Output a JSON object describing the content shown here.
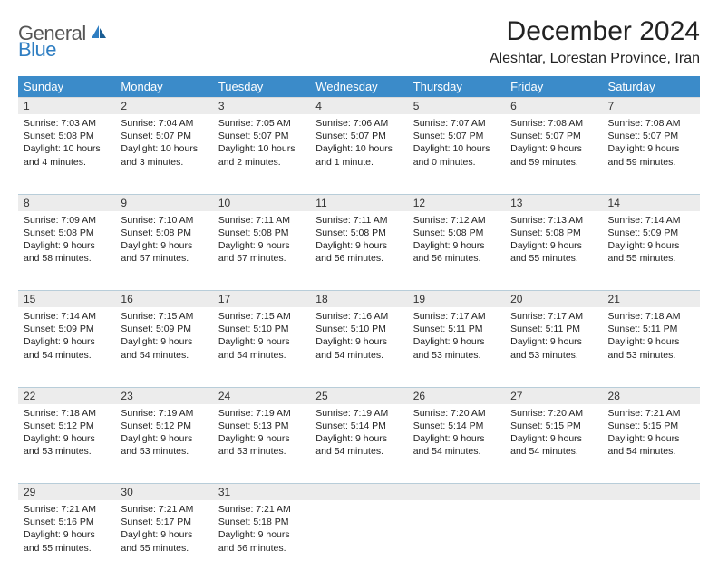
{
  "logo": {
    "word1": "General",
    "word2": "Blue"
  },
  "title": "December 2024",
  "subtitle": "Aleshtar, Lorestan Province, Iran",
  "colors": {
    "header_bg": "#3b8bc9",
    "header_text": "#ffffff",
    "daynum_bg": "#ececec",
    "row_divider": "#b8cdd9",
    "logo_accent": "#2f7ec2",
    "text": "#222222"
  },
  "day_headers": [
    "Sunday",
    "Monday",
    "Tuesday",
    "Wednesday",
    "Thursday",
    "Friday",
    "Saturday"
  ],
  "weeks": [
    [
      {
        "n": "1",
        "sunrise": "7:03 AM",
        "sunset": "5:08 PM",
        "dl": "10 hours and 4 minutes."
      },
      {
        "n": "2",
        "sunrise": "7:04 AM",
        "sunset": "5:07 PM",
        "dl": "10 hours and 3 minutes."
      },
      {
        "n": "3",
        "sunrise": "7:05 AM",
        "sunset": "5:07 PM",
        "dl": "10 hours and 2 minutes."
      },
      {
        "n": "4",
        "sunrise": "7:06 AM",
        "sunset": "5:07 PM",
        "dl": "10 hours and 1 minute."
      },
      {
        "n": "5",
        "sunrise": "7:07 AM",
        "sunset": "5:07 PM",
        "dl": "10 hours and 0 minutes."
      },
      {
        "n": "6",
        "sunrise": "7:08 AM",
        "sunset": "5:07 PM",
        "dl": "9 hours and 59 minutes."
      },
      {
        "n": "7",
        "sunrise": "7:08 AM",
        "sunset": "5:07 PM",
        "dl": "9 hours and 59 minutes."
      }
    ],
    [
      {
        "n": "8",
        "sunrise": "7:09 AM",
        "sunset": "5:08 PM",
        "dl": "9 hours and 58 minutes."
      },
      {
        "n": "9",
        "sunrise": "7:10 AM",
        "sunset": "5:08 PM",
        "dl": "9 hours and 57 minutes."
      },
      {
        "n": "10",
        "sunrise": "7:11 AM",
        "sunset": "5:08 PM",
        "dl": "9 hours and 57 minutes."
      },
      {
        "n": "11",
        "sunrise": "7:11 AM",
        "sunset": "5:08 PM",
        "dl": "9 hours and 56 minutes."
      },
      {
        "n": "12",
        "sunrise": "7:12 AM",
        "sunset": "5:08 PM",
        "dl": "9 hours and 56 minutes."
      },
      {
        "n": "13",
        "sunrise": "7:13 AM",
        "sunset": "5:08 PM",
        "dl": "9 hours and 55 minutes."
      },
      {
        "n": "14",
        "sunrise": "7:14 AM",
        "sunset": "5:09 PM",
        "dl": "9 hours and 55 minutes."
      }
    ],
    [
      {
        "n": "15",
        "sunrise": "7:14 AM",
        "sunset": "5:09 PM",
        "dl": "9 hours and 54 minutes."
      },
      {
        "n": "16",
        "sunrise": "7:15 AM",
        "sunset": "5:09 PM",
        "dl": "9 hours and 54 minutes."
      },
      {
        "n": "17",
        "sunrise": "7:15 AM",
        "sunset": "5:10 PM",
        "dl": "9 hours and 54 minutes."
      },
      {
        "n": "18",
        "sunrise": "7:16 AM",
        "sunset": "5:10 PM",
        "dl": "9 hours and 54 minutes."
      },
      {
        "n": "19",
        "sunrise": "7:17 AM",
        "sunset": "5:11 PM",
        "dl": "9 hours and 53 minutes."
      },
      {
        "n": "20",
        "sunrise": "7:17 AM",
        "sunset": "5:11 PM",
        "dl": "9 hours and 53 minutes."
      },
      {
        "n": "21",
        "sunrise": "7:18 AM",
        "sunset": "5:11 PM",
        "dl": "9 hours and 53 minutes."
      }
    ],
    [
      {
        "n": "22",
        "sunrise": "7:18 AM",
        "sunset": "5:12 PM",
        "dl": "9 hours and 53 minutes."
      },
      {
        "n": "23",
        "sunrise": "7:19 AM",
        "sunset": "5:12 PM",
        "dl": "9 hours and 53 minutes."
      },
      {
        "n": "24",
        "sunrise": "7:19 AM",
        "sunset": "5:13 PM",
        "dl": "9 hours and 53 minutes."
      },
      {
        "n": "25",
        "sunrise": "7:19 AM",
        "sunset": "5:14 PM",
        "dl": "9 hours and 54 minutes."
      },
      {
        "n": "26",
        "sunrise": "7:20 AM",
        "sunset": "5:14 PM",
        "dl": "9 hours and 54 minutes."
      },
      {
        "n": "27",
        "sunrise": "7:20 AM",
        "sunset": "5:15 PM",
        "dl": "9 hours and 54 minutes."
      },
      {
        "n": "28",
        "sunrise": "7:21 AM",
        "sunset": "5:15 PM",
        "dl": "9 hours and 54 minutes."
      }
    ],
    [
      {
        "n": "29",
        "sunrise": "7:21 AM",
        "sunset": "5:16 PM",
        "dl": "9 hours and 55 minutes."
      },
      {
        "n": "30",
        "sunrise": "7:21 AM",
        "sunset": "5:17 PM",
        "dl": "9 hours and 55 minutes."
      },
      {
        "n": "31",
        "sunrise": "7:21 AM",
        "sunset": "5:18 PM",
        "dl": "9 hours and 56 minutes."
      },
      {
        "n": "",
        "empty": true
      },
      {
        "n": "",
        "empty": true
      },
      {
        "n": "",
        "empty": true
      },
      {
        "n": "",
        "empty": true
      }
    ]
  ],
  "labels": {
    "sunrise": "Sunrise:",
    "sunset": "Sunset:",
    "daylight": "Daylight:"
  }
}
